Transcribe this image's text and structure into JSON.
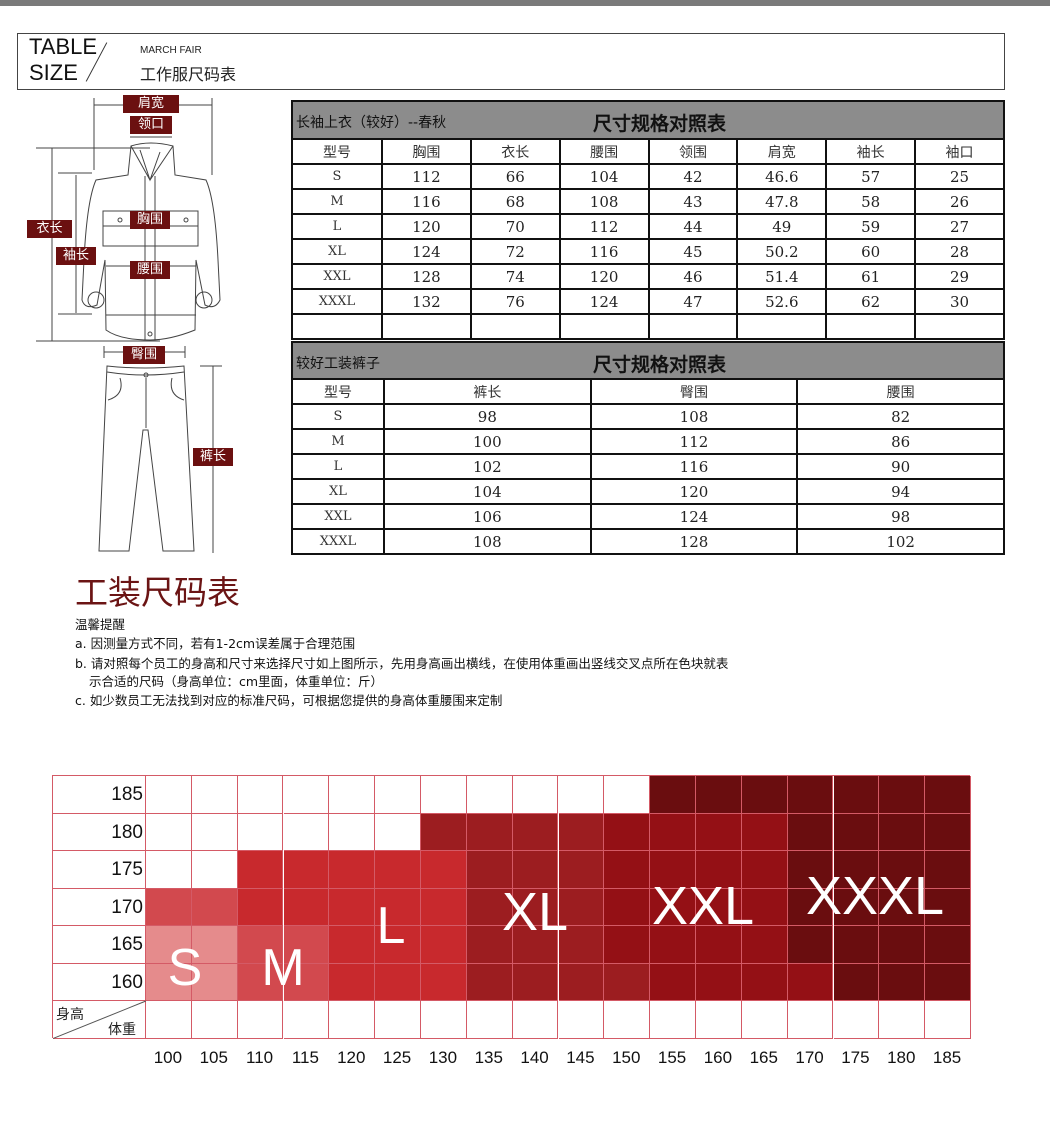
{
  "header": {
    "table": "TABLE",
    "size": "SIZE",
    "march": "MARCH FAIR",
    "title_cn": "工作服尺码表"
  },
  "diagram": {
    "labels": {
      "shoulder": "肩宽",
      "collar": "领口",
      "length": "衣长",
      "sleeve": "袖长",
      "chest": "胸围",
      "waist": "腰围",
      "hip": "臀围",
      "pants_length": "裤长"
    }
  },
  "jacket_table": {
    "title_left": "长袖上衣（较好）--春秋",
    "title_center": "尺寸规格对照表",
    "headers": [
      "型号",
      "胸围",
      "衣长",
      "腰围",
      "领围",
      "肩宽",
      "袖长",
      "袖口"
    ],
    "rows": [
      [
        "S",
        "112",
        "66",
        "104",
        "42",
        "46.6",
        "57",
        "25"
      ],
      [
        "M",
        "116",
        "68",
        "108",
        "43",
        "47.8",
        "58",
        "26"
      ],
      [
        "L",
        "120",
        "70",
        "112",
        "44",
        "49",
        "59",
        "27"
      ],
      [
        "XL",
        "124",
        "72",
        "116",
        "45",
        "50.2",
        "60",
        "28"
      ],
      [
        "XXL",
        "128",
        "74",
        "120",
        "46",
        "51.4",
        "61",
        "29"
      ],
      [
        "XXXL",
        "132",
        "76",
        "124",
        "47",
        "52.6",
        "62",
        "30"
      ]
    ]
  },
  "pants_table": {
    "title_left": "较好工装裤子",
    "title_center": "尺寸规格对照表",
    "headers": [
      "型号",
      "裤长",
      "臀围",
      "腰围"
    ],
    "rows": [
      [
        "S",
        "98",
        "108",
        "82"
      ],
      [
        "M",
        "100",
        "112",
        "86"
      ],
      [
        "L",
        "102",
        "116",
        "90"
      ],
      [
        "XL",
        "104",
        "120",
        "94"
      ],
      [
        "XXL",
        "106",
        "124",
        "98"
      ],
      [
        "XXXL",
        "108",
        "128",
        "102"
      ]
    ]
  },
  "section_title": "工装尺码表",
  "notes": {
    "heading": "温馨提醒",
    "a": "a. 因测量方式不同，若有1-2cm误差属于合理范围",
    "b1": "b. 请对照每个员工的身高和尺寸来选择尺寸如上图所示，先用身高画出横线，在使用体重画出竖线交叉点所在色块就表",
    "b2": "示合适的尺码（身高单位：cm里面，体重单位：斤）",
    "c": "c. 如少数员工无法找到对应的标准尺码，可根据您提供的身高体重腰围来定制"
  },
  "size_grid": {
    "height_label": "身高",
    "weight_label": "体重",
    "heights": [
      "185",
      "180",
      "175",
      "170",
      "165",
      "160"
    ],
    "weights": [
      "100",
      "105",
      "110",
      "115",
      "120",
      "125",
      "130",
      "135",
      "140",
      "145",
      "150",
      "155",
      "160",
      "165",
      "170",
      "175",
      "180",
      "185"
    ],
    "cells": [
      [
        "",
        "",
        "",
        "",
        "",
        "",
        "",
        "",
        "",
        "",
        "",
        "XXXL",
        "XXXL",
        "XXXL",
        "XXXL",
        "XXXL",
        "XXXL",
        "XXXL"
      ],
      [
        "",
        "",
        "",
        "",
        "",
        "",
        "XL",
        "XL",
        "XL",
        "XL",
        "XXL",
        "XXL",
        "XXL",
        "XXL",
        "XXXL",
        "XXXL",
        "XXXL",
        "XXXL"
      ],
      [
        "",
        "",
        "L",
        "L",
        "L",
        "L",
        "L",
        "XL",
        "XL",
        "XL",
        "XXL",
        "XXL",
        "XXL",
        "XXL",
        "XXXL",
        "XXXL",
        "XXXL",
        "XXXL"
      ],
      [
        "M",
        "M",
        "L",
        "L",
        "L",
        "L",
        "L",
        "XL",
        "XL",
        "XL",
        "XXL",
        "XXL",
        "XXL",
        "XXL",
        "XXXL",
        "XXXL",
        "XXXL",
        "XXXL"
      ],
      [
        "S",
        "S",
        "M",
        "M",
        "L",
        "L",
        "L",
        "XL",
        "XL",
        "XL",
        "XXL",
        "XXL",
        "XXL",
        "XXL",
        "XXXL",
        "XXXL",
        "XXXL",
        "XXXL"
      ],
      [
        "S",
        "S",
        "M",
        "M",
        "L",
        "L",
        "L",
        "XL",
        "XL",
        "XL",
        "XL",
        "XXL",
        "XXL",
        "XXL",
        "XXL",
        "XXXL",
        "XXXL",
        "XXXL"
      ]
    ],
    "size_labels": [
      "S",
      "M",
      "L",
      "XL",
      "XXL",
      "XXXL"
    ],
    "colors": {
      "S": "#e58b8c",
      "M": "#d2494e",
      "L": "#c8292d",
      "XL": "#9c1d20",
      "XXL": "#941015",
      "XXXL": "#6a0d0f"
    }
  },
  "colors": {
    "badge": "#6b1010",
    "title": "#6b1414",
    "table_title_bg": "#8c8c8c"
  }
}
